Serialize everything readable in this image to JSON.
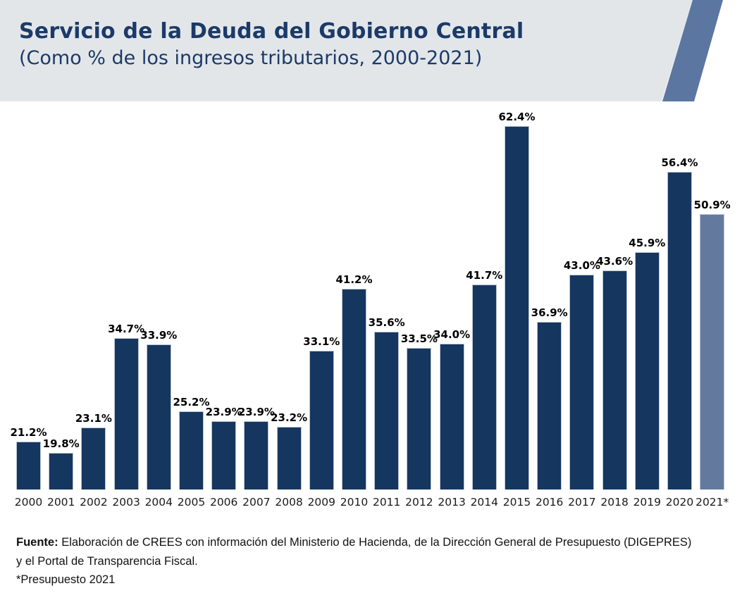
{
  "header": {
    "title": "Servicio de la Deuda del Gobierno Central",
    "subtitle": "(Como % de los ingresos tributarios, 2000-2021)",
    "colors": {
      "band": "#e3e6e9",
      "ribbon": "#5b76a0",
      "title_text": "#1b3a69"
    }
  },
  "chart_data": {
    "type": "bar",
    "title": "Servicio de la Deuda del Gobierno Central",
    "subtitle": "(Como % de los ingresos tributarios, 2000-2021)",
    "categories": [
      "2000",
      "2001",
      "2002",
      "2003",
      "2004",
      "2005",
      "2006",
      "2007",
      "2008",
      "2009",
      "2010",
      "2011",
      "2012",
      "2013",
      "2014",
      "2015",
      "2016",
      "2017",
      "2018",
      "2019",
      "2020",
      "2021*"
    ],
    "values": [
      21.2,
      19.8,
      23.1,
      34.7,
      33.9,
      25.2,
      23.9,
      23.9,
      23.2,
      33.1,
      41.2,
      35.6,
      33.5,
      34.0,
      41.7,
      62.4,
      36.9,
      43.0,
      43.6,
      45.9,
      56.4,
      50.9
    ],
    "value_suffix": "%",
    "data_labels": true,
    "bar_color": "#15365f",
    "highlight_index": 21,
    "highlight_color": "#64799e",
    "ylim": [
      15,
      65
    ],
    "grid": false,
    "legend": false,
    "xlabel": "",
    "ylabel": ""
  },
  "footer": {
    "source_label": "Fuente:",
    "source_text_line1": "Elaboración de CREES con información del Ministerio de Hacienda, de la Dirección General de Presupuesto (DIGEPRES)",
    "source_text_line2": "y el Portal de Transparencia Fiscal.",
    "note": "*Presupuesto 2021"
  }
}
